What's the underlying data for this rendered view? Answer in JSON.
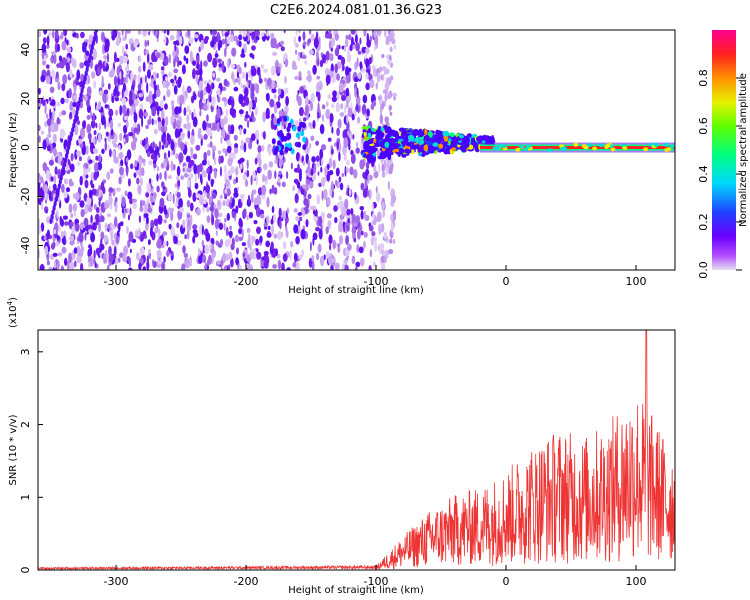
{
  "title": "C2E6.2024.081.01.36.G23",
  "colors": {
    "snr_line": "#ee3333",
    "spectrogram_dots": "#6611ee",
    "spectrogram_light": "#c8a0f0"
  },
  "chart_data": [
    {
      "type": "heatmap",
      "xlabel": "Height of straight line (km)",
      "ylabel": "Frequency (Hz)",
      "xlim": [
        -360,
        130
      ],
      "ylim": [
        -50,
        48
      ],
      "xticks": [
        -300,
        -200,
        -100,
        0,
        100
      ],
      "yticks": [
        -40,
        -20,
        0,
        20,
        40
      ],
      "colorbar": {
        "label": "Normalized spectral amplitude",
        "range": [
          0,
          1
        ],
        "ticks": [
          "0.0",
          "0.2",
          "0.4",
          "0.6",
          "0.8"
        ],
        "colormap": "rainbow (purple-blue-cyan-green-yellow-red-magenta)"
      },
      "features": {
        "noise_region_x": [
          -360,
          -90
        ],
        "gap_at_x": -165,
        "converging_band": {
          "x": [
            -110,
            -10
          ],
          "half_width_hz": [
            7,
            2
          ]
        },
        "narrow_line_at_0hz_from_x": -20,
        "diagonal_streak": {
          "from": [
            -350,
            -30
          ],
          "to": [
            -315,
            48
          ]
        }
      }
    },
    {
      "type": "line",
      "xlabel": "Height of straight line (km)",
      "ylabel": "SNR (10 * v/v)",
      "y_multiplier": "(x10",
      "y_multiplier_exponent": "4",
      "y_multiplier_close": ")",
      "xlim": [
        -360,
        130
      ],
      "ylim": [
        0,
        3.3
      ],
      "xticks": [
        -300,
        -200,
        -100,
        0,
        100
      ],
      "yticks": [
        0,
        1,
        2,
        3
      ],
      "envelope": {
        "x": [
          -360,
          -100,
          -80,
          -60,
          -40,
          -20,
          0,
          20,
          40,
          60,
          80,
          100,
          115,
          125
        ],
        "y": [
          0.03,
          0.05,
          0.4,
          0.7,
          0.9,
          1.0,
          1.2,
          1.5,
          1.7,
          1.6,
          1.8,
          2.2,
          1.8,
          1.5
        ]
      },
      "peak": {
        "x": 108,
        "y": 3.3
      }
    }
  ]
}
